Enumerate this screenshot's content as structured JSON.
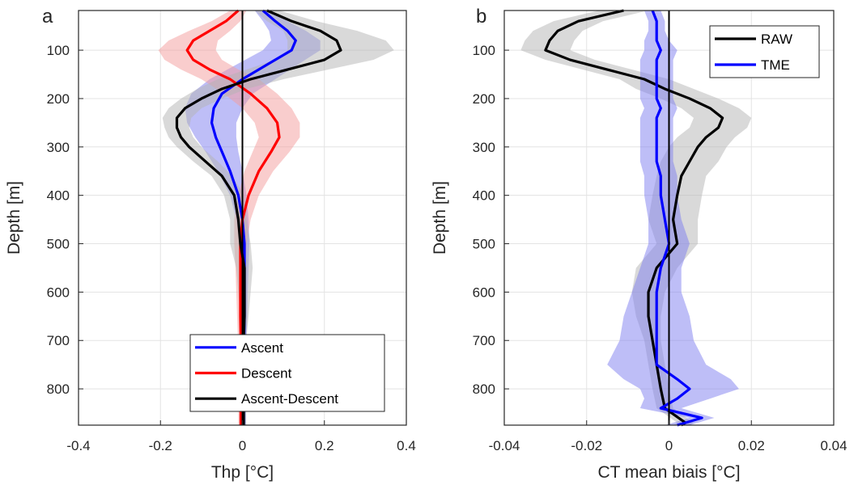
{
  "chart_data": [
    {
      "type": "line",
      "panel_label": "a",
      "xlabel": "Thp [°C]",
      "ylabel": "Depth [m]",
      "xlim": [
        -0.4,
        0.4
      ],
      "ylim": [
        875,
        18
      ],
      "y_reversed": true,
      "xticks": [
        -0.4,
        -0.2,
        0,
        0.2,
        0.4
      ],
      "xtick_labels": [
        "-0.4",
        "-0.2",
        "0",
        "0.2",
        "0.4"
      ],
      "yticks": [
        100,
        200,
        300,
        400,
        500,
        600,
        700,
        800
      ],
      "ytick_labels": [
        "100",
        "200",
        "300",
        "400",
        "500",
        "600",
        "700",
        "800"
      ],
      "grid": true,
      "legend_position": "bottom-right",
      "reference_line_x": 0,
      "series": [
        {
          "name": "Ascent",
          "color": "#0000ff",
          "band_color": "#7d7df0",
          "depth": [
            18,
            40,
            60,
            80,
            100,
            130,
            160,
            190,
            220,
            250,
            280,
            310,
            350,
            400,
            450,
            500,
            550,
            600,
            650,
            700,
            750,
            800,
            850,
            875
          ],
          "values": [
            0.05,
            0.08,
            0.11,
            0.13,
            0.12,
            0.06,
            0.0,
            -0.05,
            -0.07,
            -0.075,
            -0.065,
            -0.05,
            -0.03,
            -0.01,
            0.0,
            0.005,
            0.005,
            0.005,
            0.005,
            0.004,
            0.004,
            0.003,
            0.003,
            0.003
          ],
          "band_half_width": [
            0.02,
            0.03,
            0.045,
            0.06,
            0.07,
            0.075,
            0.08,
            0.075,
            0.07,
            0.06,
            0.05,
            0.04,
            0.03,
            0.02,
            0.015,
            0.012,
            0.01,
            0.008,
            0.007,
            0.006,
            0.006,
            0.006,
            0.006,
            0.006
          ]
        },
        {
          "name": "Descent",
          "color": "#ff0000",
          "band_color": "#f39b9b",
          "depth": [
            18,
            40,
            60,
            80,
            100,
            120,
            140,
            160,
            190,
            220,
            250,
            280,
            310,
            350,
            400,
            450,
            500,
            550,
            600,
            650,
            700,
            750,
            800,
            850,
            875
          ],
          "values": [
            -0.01,
            -0.04,
            -0.08,
            -0.12,
            -0.135,
            -0.12,
            -0.08,
            -0.03,
            0.02,
            0.06,
            0.085,
            0.09,
            0.07,
            0.04,
            0.015,
            0.0,
            -0.005,
            -0.005,
            -0.005,
            -0.005,
            -0.004,
            -0.004,
            -0.004,
            -0.004,
            -0.004
          ],
          "band_half_width": [
            0.02,
            0.035,
            0.05,
            0.06,
            0.07,
            0.07,
            0.07,
            0.07,
            0.065,
            0.06,
            0.055,
            0.05,
            0.045,
            0.035,
            0.025,
            0.02,
            0.015,
            0.012,
            0.01,
            0.008,
            0.007,
            0.006,
            0.006,
            0.006,
            0.006
          ]
        },
        {
          "name": "Ascent-Descent",
          "color": "#000000",
          "band_color": "#b3b3b3",
          "depth": [
            18,
            40,
            60,
            80,
            100,
            120,
            140,
            160,
            180,
            200,
            220,
            240,
            260,
            280,
            300,
            330,
            360,
            400,
            450,
            500,
            550,
            600,
            650,
            700,
            750,
            800,
            850,
            875
          ],
          "values": [
            0.06,
            0.12,
            0.19,
            0.23,
            0.24,
            0.2,
            0.11,
            0.02,
            -0.05,
            -0.1,
            -0.14,
            -0.16,
            -0.16,
            -0.15,
            -0.13,
            -0.09,
            -0.05,
            -0.02,
            -0.01,
            -0.005,
            0.005,
            0.005,
            0.005,
            0.003,
            0.003,
            0.003,
            0.003,
            0.003
          ],
          "band_half_width": [
            0.03,
            0.06,
            0.09,
            0.12,
            0.13,
            0.12,
            0.1,
            0.08,
            0.06,
            0.05,
            0.04,
            0.035,
            0.03,
            0.03,
            0.03,
            0.03,
            0.025,
            0.025,
            0.02,
            0.025,
            0.02,
            0.015,
            0.01,
            0.006,
            0.006,
            0.006,
            0.006,
            0.006
          ]
        }
      ]
    },
    {
      "type": "line",
      "panel_label": "b",
      "xlabel": "CT mean biais [°C]",
      "ylabel": "Depth [m]",
      "xlim": [
        -0.04,
        0.04
      ],
      "ylim": [
        875,
        18
      ],
      "y_reversed": true,
      "xticks": [
        -0.04,
        -0.02,
        0,
        0.02,
        0.04
      ],
      "xtick_labels": [
        "-0.04",
        "-0.02",
        "0",
        "0.02",
        "0.04"
      ],
      "yticks": [
        100,
        200,
        300,
        400,
        500,
        600,
        700,
        800
      ],
      "ytick_labels": [
        "100",
        "200",
        "300",
        "400",
        "500",
        "600",
        "700",
        "800"
      ],
      "grid": true,
      "legend_position": "top-right",
      "reference_line_x": 0,
      "series": [
        {
          "name": "RAW",
          "color": "#000000",
          "band_color": "#b3b3b3",
          "depth": [
            18,
            40,
            60,
            80,
            100,
            120,
            140,
            160,
            180,
            200,
            220,
            240,
            260,
            280,
            300,
            330,
            360,
            400,
            450,
            500,
            550,
            600,
            650,
            700,
            750,
            800,
            840,
            870,
            875
          ],
          "values": [
            -0.011,
            -0.022,
            -0.027,
            -0.029,
            -0.03,
            -0.024,
            -0.015,
            -0.006,
            -0.001,
            0.005,
            0.01,
            0.013,
            0.012,
            0.009,
            0.007,
            0.005,
            0.003,
            0.002,
            0.001,
            0.002,
            -0.003,
            -0.005,
            -0.005,
            -0.004,
            -0.003,
            -0.002,
            -0.001,
            0.004,
            0.003
          ],
          "band_half_width": [
            0.006,
            0.006,
            0.006,
            0.006,
            0.006,
            0.006,
            0.006,
            0.006,
            0.007,
            0.007,
            0.007,
            0.007,
            0.007,
            0.007,
            0.007,
            0.007,
            0.006,
            0.006,
            0.006,
            0.005,
            0.005,
            0.004,
            0.003,
            0.002,
            0.002,
            0.002,
            0.002,
            0.002,
            0.002
          ]
        },
        {
          "name": "TME",
          "color": "#0000ff",
          "band_color": "#7d7df0",
          "depth": [
            18,
            40,
            60,
            80,
            100,
            120,
            140,
            160,
            180,
            200,
            220,
            240,
            260,
            280,
            300,
            330,
            360,
            400,
            450,
            500,
            550,
            600,
            650,
            700,
            750,
            780,
            800,
            820,
            840,
            860,
            875
          ],
          "values": [
            -0.004,
            -0.003,
            -0.003,
            -0.003,
            -0.002,
            -0.003,
            -0.003,
            -0.003,
            -0.003,
            -0.003,
            -0.002,
            -0.003,
            -0.003,
            -0.003,
            -0.003,
            -0.003,
            -0.002,
            -0.002,
            -0.001,
            0.0,
            -0.002,
            -0.003,
            -0.003,
            -0.003,
            -0.003,
            0.002,
            0.005,
            0.002,
            -0.002,
            0.008,
            0.002
          ],
          "band_half_width": [
            0.002,
            0.002,
            0.002,
            0.003,
            0.004,
            0.004,
            0.004,
            0.004,
            0.004,
            0.004,
            0.004,
            0.004,
            0.004,
            0.004,
            0.004,
            0.004,
            0.004,
            0.004,
            0.004,
            0.005,
            0.005,
            0.006,
            0.008,
            0.009,
            0.012,
            0.013,
            0.012,
            0.008,
            0.005,
            0.003,
            0.003
          ]
        }
      ]
    }
  ]
}
